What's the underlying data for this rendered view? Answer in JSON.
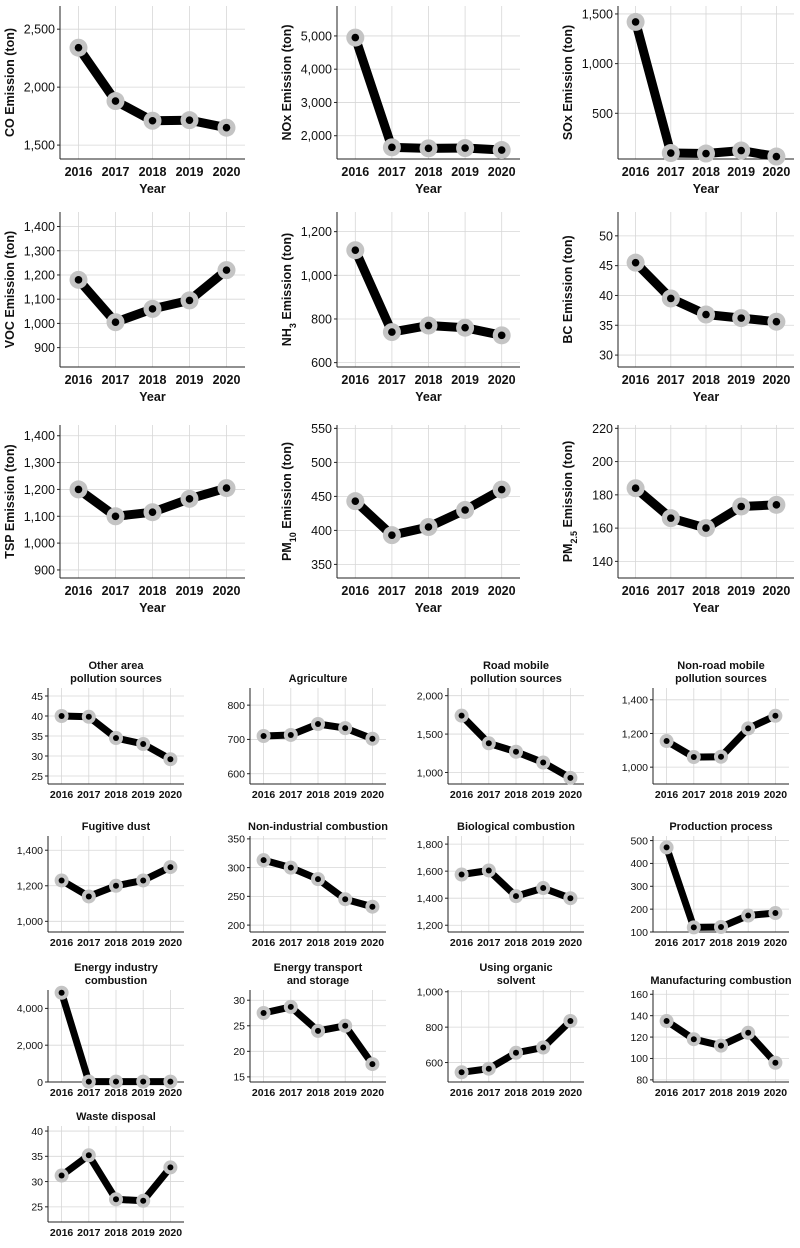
{
  "chart_data": [
    {
      "id": "co",
      "type": "line",
      "title": "",
      "ylabel": "CO Emission (ton)",
      "ylabel_parts": [
        {
          "t": "CO Emission (ton)"
        }
      ],
      "xlabel": "Year",
      "categories": [
        "2016",
        "2017",
        "2018",
        "2019",
        "2020"
      ],
      "values": [
        2340,
        1880,
        1710,
        1715,
        1650
      ],
      "ylim": [
        1380,
        2700
      ],
      "yticks": [
        1500,
        2000,
        2500
      ],
      "ytick_labels": [
        "1,500",
        "2,000",
        "2,500"
      ],
      "grid": true
    },
    {
      "id": "nox",
      "type": "line",
      "title": "",
      "ylabel": "NOx Emission (ton)",
      "ylabel_parts": [
        {
          "t": "NOx Emission (ton)"
        }
      ],
      "xlabel": "Year",
      "categories": [
        "2016",
        "2017",
        "2018",
        "2019",
        "2020"
      ],
      "values": [
        4950,
        1650,
        1620,
        1630,
        1570
      ],
      "ylim": [
        1300,
        5900
      ],
      "yticks": [
        2000,
        3000,
        4000,
        5000
      ],
      "ytick_labels": [
        "2,000",
        "3,000",
        "4,000",
        "5,000"
      ],
      "grid": true
    },
    {
      "id": "sox",
      "type": "line",
      "title": "",
      "ylabel": "SOx Emission (ton)",
      "ylabel_parts": [
        {
          "t": "SOx Emission (ton)"
        }
      ],
      "xlabel": "Year",
      "categories": [
        "2016",
        "2017",
        "2018",
        "2019",
        "2020"
      ],
      "values": [
        1420,
        100,
        95,
        125,
        65
      ],
      "ylim": [
        40,
        1580
      ],
      "yticks": [
        500,
        1000,
        1500
      ],
      "ytick_labels": [
        "500",
        "1,000",
        "1,500"
      ],
      "grid": true
    },
    {
      "id": "voc",
      "type": "line",
      "title": "",
      "ylabel": "VOC Emission (ton)",
      "ylabel_parts": [
        {
          "t": "VOC Emission (ton)"
        }
      ],
      "xlabel": "Year",
      "categories": [
        "2016",
        "2017",
        "2018",
        "2019",
        "2020"
      ],
      "values": [
        1180,
        1005,
        1060,
        1095,
        1220
      ],
      "ylim": [
        820,
        1460
      ],
      "yticks": [
        900,
        1000,
        1100,
        1200,
        1300,
        1400
      ],
      "ytick_labels": [
        "900",
        "1,000",
        "1,100",
        "1,200",
        "1,300",
        "1,400"
      ],
      "grid": true
    },
    {
      "id": "nh3",
      "type": "line",
      "title": "",
      "ylabel": "NH3 Emission (ton)",
      "ylabel_parts": [
        {
          "t": "NH"
        },
        {
          "t": "3",
          "sub": true
        },
        {
          "t": " Emission (ton)"
        }
      ],
      "xlabel": "Year",
      "categories": [
        "2016",
        "2017",
        "2018",
        "2019",
        "2020"
      ],
      "values": [
        1115,
        740,
        770,
        760,
        725
      ],
      "ylim": [
        580,
        1290
      ],
      "yticks": [
        600,
        800,
        1000,
        1200
      ],
      "ytick_labels": [
        "600",
        "800",
        "1,000",
        "1,200"
      ],
      "grid": true
    },
    {
      "id": "bc",
      "type": "line",
      "title": "",
      "ylabel": "BC Emission (ton)",
      "ylabel_parts": [
        {
          "t": "BC Emission (ton)"
        }
      ],
      "xlabel": "Year",
      "categories": [
        "2016",
        "2017",
        "2018",
        "2019",
        "2020"
      ],
      "values": [
        45.5,
        39.5,
        36.8,
        36.2,
        35.6
      ],
      "ylim": [
        28,
        54
      ],
      "yticks": [
        30,
        35,
        40,
        45,
        50
      ],
      "ytick_labels": [
        "30",
        "35",
        "40",
        "45",
        "50"
      ],
      "grid": true
    },
    {
      "id": "tsp",
      "type": "line",
      "title": "",
      "ylabel": "TSP Emission (ton)",
      "ylabel_parts": [
        {
          "t": "TSP Emission (ton)"
        }
      ],
      "xlabel": "Year",
      "categories": [
        "2016",
        "2017",
        "2018",
        "2019",
        "2020"
      ],
      "values": [
        1200,
        1100,
        1115,
        1165,
        1205
      ],
      "ylim": [
        870,
        1440
      ],
      "yticks": [
        900,
        1000,
        1100,
        1200,
        1300,
        1400
      ],
      "ytick_labels": [
        "900",
        "1,000",
        "1,100",
        "1,200",
        "1,300",
        "1,400"
      ],
      "grid": true
    },
    {
      "id": "pm10",
      "type": "line",
      "title": "",
      "ylabel": "PM10 Emission (ton)",
      "ylabel_parts": [
        {
          "t": "PM"
        },
        {
          "t": "10",
          "sub": true
        },
        {
          "t": " Emission (ton)"
        }
      ],
      "xlabel": "Year",
      "categories": [
        "2016",
        "2017",
        "2018",
        "2019",
        "2020"
      ],
      "values": [
        443,
        393,
        405,
        430,
        460
      ],
      "ylim": [
        330,
        555
      ],
      "yticks": [
        350,
        400,
        450,
        500,
        550
      ],
      "ytick_labels": [
        "350",
        "400",
        "450",
        "500",
        "550"
      ],
      "grid": true
    },
    {
      "id": "pm25",
      "type": "line",
      "title": "",
      "ylabel": "PM2.5 Emission (ton)",
      "ylabel_parts": [
        {
          "t": "PM"
        },
        {
          "t": "2.5",
          "sub": true
        },
        {
          "t": " Emission (ton)"
        }
      ],
      "xlabel": "Year",
      "categories": [
        "2016",
        "2017",
        "2018",
        "2019",
        "2020"
      ],
      "values": [
        184,
        166,
        160,
        173,
        174
      ],
      "ylim": [
        130,
        222
      ],
      "yticks": [
        140,
        160,
        180,
        200,
        220
      ],
      "ytick_labels": [
        "140",
        "160",
        "180",
        "200",
        "220"
      ],
      "grid": true
    },
    {
      "id": "other_area",
      "type": "line",
      "title": "Other area pollution sources",
      "title_lines": [
        "Other area",
        "pollution sources"
      ],
      "ylabel": "",
      "xlabel": "",
      "categories": [
        "2016",
        "2017",
        "2018",
        "2019",
        "2020"
      ],
      "values": [
        40,
        39.8,
        34.5,
        33,
        29.2
      ],
      "ylim": [
        23,
        47
      ],
      "yticks": [
        25,
        30,
        35,
        40,
        45
      ],
      "ytick_labels": [
        "25",
        "30",
        "35",
        "40",
        "45"
      ],
      "grid": true
    },
    {
      "id": "agriculture",
      "type": "line",
      "title": "Agriculture",
      "title_lines": [
        "Agriculture"
      ],
      "ylabel": "",
      "xlabel": "",
      "categories": [
        "2016",
        "2017",
        "2018",
        "2019",
        "2020"
      ],
      "values": [
        710,
        713,
        745,
        733,
        702
      ],
      "ylim": [
        570,
        850
      ],
      "yticks": [
        600,
        700,
        800
      ],
      "ytick_labels": [
        "600",
        "700",
        "800"
      ],
      "grid": true
    },
    {
      "id": "road_mobile",
      "type": "line",
      "title": "Road mobile pollution sources",
      "title_lines": [
        "Road mobile",
        "pollution sources"
      ],
      "ylabel": "",
      "xlabel": "",
      "categories": [
        "2016",
        "2017",
        "2018",
        "2019",
        "2020"
      ],
      "values": [
        1740,
        1380,
        1270,
        1130,
        930
      ],
      "ylim": [
        850,
        2100
      ],
      "yticks": [
        1000,
        1500,
        2000
      ],
      "ytick_labels": [
        "1,000",
        "1,500",
        "2,000"
      ],
      "grid": true
    },
    {
      "id": "non_road_mobile",
      "type": "line",
      "title": "Non-road mobile pollution sources",
      "title_lines": [
        "Non-road mobile",
        "pollution sources"
      ],
      "ylabel": "",
      "xlabel": "",
      "categories": [
        "2016",
        "2017",
        "2018",
        "2019",
        "2020"
      ],
      "values": [
        1155,
        1060,
        1062,
        1230,
        1305
      ],
      "ylim": [
        900,
        1470
      ],
      "yticks": [
        1000,
        1200,
        1400
      ],
      "ytick_labels": [
        "1,000",
        "1,200",
        "1,400"
      ],
      "grid": true
    },
    {
      "id": "fugitive_dust",
      "type": "line",
      "title": "Fugitive dust",
      "title_lines": [
        "Fugitive dust"
      ],
      "ylabel": "",
      "xlabel": "",
      "categories": [
        "2016",
        "2017",
        "2018",
        "2019",
        "2020"
      ],
      "values": [
        1230,
        1140,
        1200,
        1230,
        1305
      ],
      "ylim": [
        940,
        1480
      ],
      "yticks": [
        1000,
        1200,
        1400
      ],
      "ytick_labels": [
        "1,000",
        "1,200",
        "1,400"
      ],
      "grid": true
    },
    {
      "id": "non_industrial",
      "type": "line",
      "title": "Non-industrial combustion",
      "title_lines": [
        "Non-industrial combustion"
      ],
      "ylabel": "",
      "xlabel": "",
      "categories": [
        "2016",
        "2017",
        "2018",
        "2019",
        "2020"
      ],
      "values": [
        313,
        300,
        280,
        245,
        232
      ],
      "ylim": [
        188,
        355
      ],
      "yticks": [
        200,
        250,
        300,
        350
      ],
      "ytick_labels": [
        "200",
        "250",
        "300",
        "350"
      ],
      "grid": true
    },
    {
      "id": "biological",
      "type": "line",
      "title": "Biological combustion",
      "title_lines": [
        "Biological combustion"
      ],
      "ylabel": "",
      "xlabel": "",
      "categories": [
        "2016",
        "2017",
        "2018",
        "2019",
        "2020"
      ],
      "values": [
        1575,
        1605,
        1415,
        1475,
        1400
      ],
      "ylim": [
        1150,
        1860
      ],
      "yticks": [
        1200,
        1400,
        1600,
        1800
      ],
      "ytick_labels": [
        "1,200",
        "1,400",
        "1,600",
        "1,800"
      ],
      "grid": true
    },
    {
      "id": "production",
      "type": "line",
      "title": "Production process",
      "title_lines": [
        "Production process"
      ],
      "ylabel": "",
      "xlabel": "",
      "categories": [
        "2016",
        "2017",
        "2018",
        "2019",
        "2020"
      ],
      "values": [
        470,
        120,
        122,
        172,
        183
      ],
      "ylim": [
        100,
        520
      ],
      "yticks": [
        100,
        200,
        300,
        400,
        500
      ],
      "ytick_labels": [
        "100",
        "200",
        "300",
        "400",
        "500"
      ],
      "grid": true
    },
    {
      "id": "energy_industry",
      "type": "line",
      "title": "Energy industry combustion",
      "title_lines": [
        "Energy industry",
        "combustion"
      ],
      "ylabel": "",
      "xlabel": "",
      "categories": [
        "2016",
        "2017",
        "2018",
        "2019",
        "2020"
      ],
      "values": [
        4850,
        20,
        20,
        20,
        20
      ],
      "ylim": [
        0,
        5000
      ],
      "yticks": [
        0,
        2000,
        4000
      ],
      "ytick_labels": [
        "0",
        "2,000",
        "4,000"
      ],
      "grid": true
    },
    {
      "id": "energy_transport",
      "type": "line",
      "title": "Energy transport and storage",
      "title_lines": [
        "Energy transport",
        "and storage"
      ],
      "ylabel": "",
      "xlabel": "",
      "categories": [
        "2016",
        "2017",
        "2018",
        "2019",
        "2020"
      ],
      "values": [
        27.5,
        28.7,
        24,
        25,
        17.5
      ],
      "ylim": [
        14,
        32
      ],
      "yticks": [
        15,
        20,
        25,
        30
      ],
      "ytick_labels": [
        "15",
        "20",
        "25",
        "30"
      ],
      "grid": true
    },
    {
      "id": "organic_solvent",
      "type": "line",
      "title": "Using organic solvent",
      "title_lines": [
        "Using organic",
        "solvent"
      ],
      "ylabel": "",
      "xlabel": "",
      "categories": [
        "2016",
        "2017",
        "2018",
        "2019",
        "2020"
      ],
      "values": [
        545,
        565,
        655,
        685,
        835
      ],
      "ylim": [
        490,
        1010
      ],
      "yticks": [
        600,
        800,
        1000
      ],
      "ytick_labels": [
        "600",
        "800",
        "1,000"
      ],
      "grid": true
    },
    {
      "id": "manufacturing",
      "type": "line",
      "title": "Manufacturing combustion",
      "title_lines": [
        "Manufacturing combustion"
      ],
      "ylabel": "",
      "xlabel": "",
      "categories": [
        "2016",
        "2017",
        "2018",
        "2019",
        "2020"
      ],
      "values": [
        135,
        118,
        112,
        124,
        96
      ],
      "ylim": [
        78,
        164
      ],
      "yticks": [
        80,
        100,
        120,
        140,
        160
      ],
      "ytick_labels": [
        "80",
        "100",
        "120",
        "140",
        "160"
      ],
      "grid": true
    },
    {
      "id": "waste",
      "type": "line",
      "title": "Waste disposal",
      "title_lines": [
        "Waste disposal"
      ],
      "ylabel": "",
      "xlabel": "",
      "categories": [
        "2016",
        "2017",
        "2018",
        "2019",
        "2020"
      ],
      "values": [
        31.2,
        35.2,
        26.5,
        26.2,
        32.8
      ],
      "ylim": [
        22,
        41
      ],
      "yticks": [
        25,
        30,
        35,
        40
      ],
      "ytick_labels": [
        "25",
        "30",
        "35",
        "40"
      ],
      "grid": true
    }
  ],
  "style": {
    "line_color": "#000000",
    "marker_halo_color": "#c4c4c4",
    "marker_dot_color": "#000000",
    "grid_color": "#d7d7d7",
    "axis_color": "#222222",
    "text_color": "#111111"
  }
}
